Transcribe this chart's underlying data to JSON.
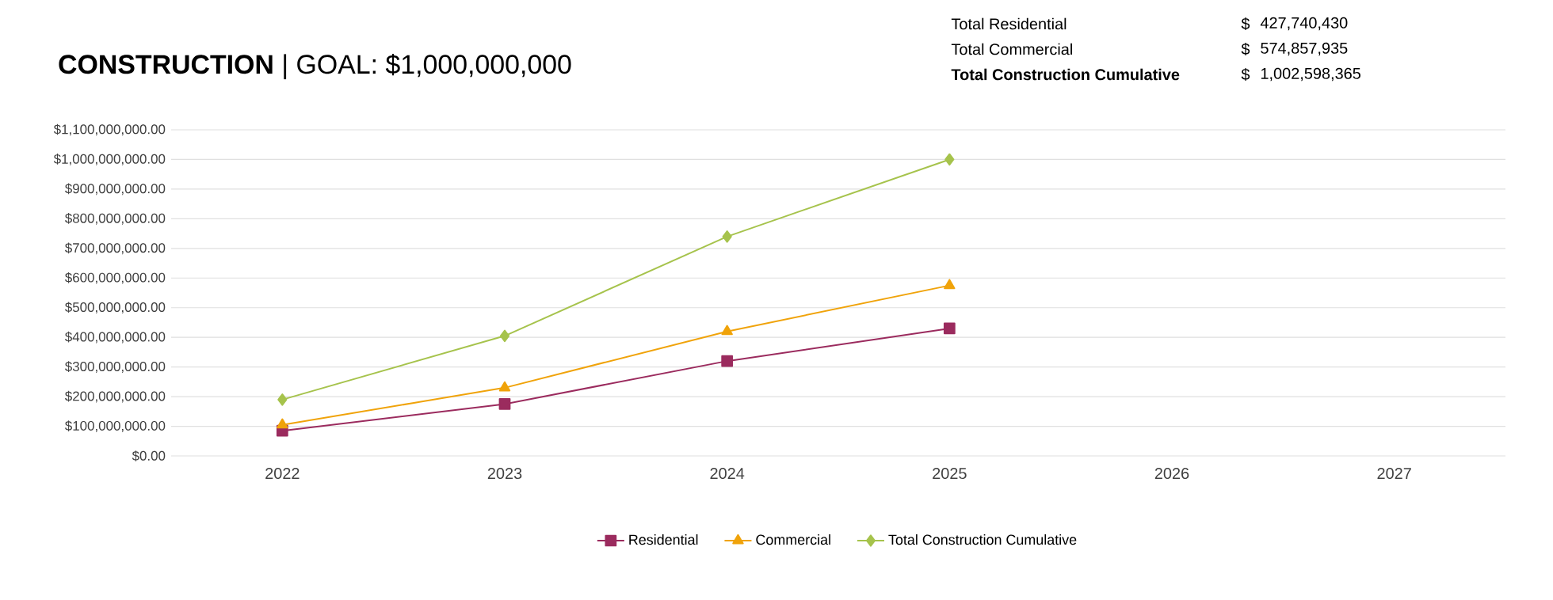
{
  "chart_data": {
    "type": "line",
    "title": "**CONSTRUCTION** | GOAL: $1,000,000,000",
    "annotations": [
      "Total Residential",
      "$",
      "427,740,430",
      "Total Commercial",
      "$",
      "574,857,935",
      "Total Construction Cumulative",
      "$",
      "1,002,598,365"
    ],
    "categories": [
      "2022",
      "2023",
      "2024",
      "2025",
      "2026",
      "2027"
    ],
    "series": [
      {
        "name": "Residential",
        "color": "#9b2b5e",
        "marker": "square",
        "values": [
          85000000,
          175000000,
          320000000,
          430000000,
          null,
          null
        ]
      },
      {
        "name": "Commercial",
        "color": "#f0a30a",
        "marker": "triangle",
        "values": [
          105000000,
          230000000,
          420000000,
          575000000,
          null,
          null
        ]
      },
      {
        "name": "Total Construction Cumulative",
        "color": "#a6c34c",
        "marker": "diamond",
        "values": [
          190000000,
          405000000,
          740000000,
          1000000000,
          null,
          null
        ]
      }
    ],
    "ylim": [
      0,
      1100000000
    ],
    "yticks": [
      {
        "value": 0,
        "label": "$0.00"
      },
      {
        "value": 100000000,
        "label": "$100,000,000.00"
      },
      {
        "value": 200000000,
        "label": "$200,000,000.00"
      },
      {
        "value": 300000000,
        "label": "$300,000,000.00"
      },
      {
        "value": 400000000,
        "label": "$400,000,000.00"
      },
      {
        "value": 500000000,
        "label": "$500,000,000.00"
      },
      {
        "value": 600000000,
        "label": "$600,000,000.00"
      },
      {
        "value": 700000000,
        "label": "$700,000,000.00"
      },
      {
        "value": 800000000,
        "label": "$800,000,000.00"
      },
      {
        "value": 900000000,
        "label": "$900,000,000.00"
      },
      {
        "value": 1000000000,
        "label": "$1,000,000,000.00"
      },
      {
        "value": 1100000000,
        "label": "$1,100,000,000.00"
      }
    ],
    "grid": "y",
    "legend": "bottom",
    "line_style": "solid"
  }
}
